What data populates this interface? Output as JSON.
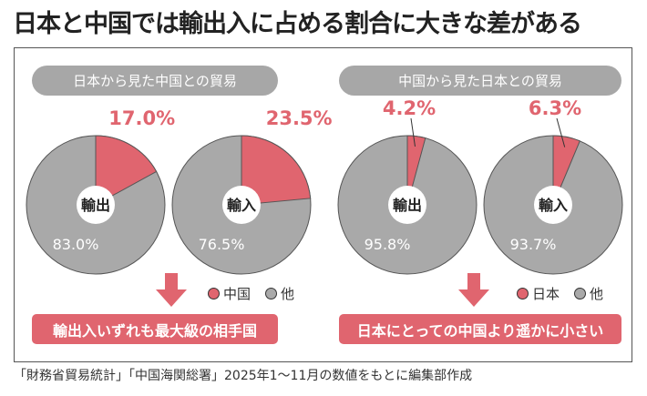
{
  "title": "日本と中国では輸出入に占める割合に大きな差がある",
  "colors": {
    "highlight": "#e0656f",
    "other": "#a9a9a9"
  },
  "groups": [
    {
      "header": "日本から見た中国との貿易",
      "legend": [
        "中国",
        "他"
      ],
      "conclusion": "輸出入いずれも最大級の相手国"
    },
    {
      "header": "中国から見た日本との貿易",
      "legend": [
        "日本",
        "他"
      ],
      "conclusion": "日本にとっての中国より遥かに小さい"
    }
  ],
  "chart_data": [
    {
      "type": "pie",
      "center_label": "輸出",
      "slices": [
        {
          "name": "中国",
          "value": 17.0,
          "label": "17.0%"
        },
        {
          "name": "他",
          "value": 83.0,
          "label": "83.0%"
        }
      ]
    },
    {
      "type": "pie",
      "center_label": "輸入",
      "slices": [
        {
          "name": "中国",
          "value": 23.5,
          "label": "23.5%"
        },
        {
          "name": "他",
          "value": 76.5,
          "label": "76.5%"
        }
      ]
    },
    {
      "type": "pie",
      "center_label": "輸出",
      "slices": [
        {
          "name": "日本",
          "value": 4.2,
          "label": "4.2%"
        },
        {
          "name": "他",
          "value": 95.8,
          "label": "95.8%"
        }
      ]
    },
    {
      "type": "pie",
      "center_label": "輸入",
      "slices": [
        {
          "name": "日本",
          "value": 6.3,
          "label": "6.3%"
        },
        {
          "name": "他",
          "value": 93.7,
          "label": "93.7%"
        }
      ]
    }
  ],
  "footer": "「財務省貿易統計」「中国海関総署」2025年1～11月の数値をもとに編集部作成"
}
